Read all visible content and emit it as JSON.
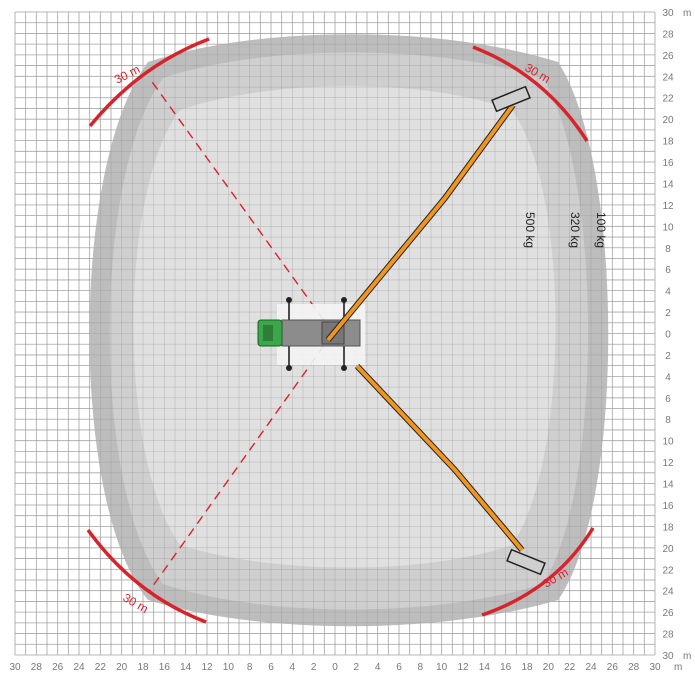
{
  "diagram": {
    "axis_unit": "m",
    "x_tick_labels": [
      "30",
      "28",
      "26",
      "24",
      "22",
      "20",
      "18",
      "16",
      "14",
      "12",
      "10",
      "8",
      "6",
      "4",
      "2",
      "0",
      "2",
      "4",
      "6",
      "8",
      "10",
      "12",
      "14",
      "16",
      "18",
      "20",
      "22",
      "24",
      "26",
      "28",
      "30"
    ],
    "y_tick_labels": [
      "30",
      "28",
      "26",
      "24",
      "22",
      "20",
      "18",
      "16",
      "14",
      "12",
      "10",
      "8",
      "6",
      "4",
      "2",
      "0",
      "2",
      "4",
      "6",
      "8",
      "10",
      "12",
      "14",
      "16",
      "18",
      "20",
      "22",
      "24",
      "26",
      "28",
      "30"
    ],
    "load_zones": [
      "100 kg",
      "320 kg",
      "500 kg"
    ],
    "radius_labels": [
      "30 m",
      "30 m",
      "30 m",
      "30 m"
    ],
    "colors": {
      "grid": "#b5b5b5",
      "outer_zone": "#bdbdbd",
      "middle_zone": "#cfcfcf",
      "inner_zone": "#e0e0e0",
      "radius_arc": "#d6242c",
      "boom": "#f0951e",
      "cab": "#3aa84a",
      "chassis": "#8c8c8c"
    }
  }
}
